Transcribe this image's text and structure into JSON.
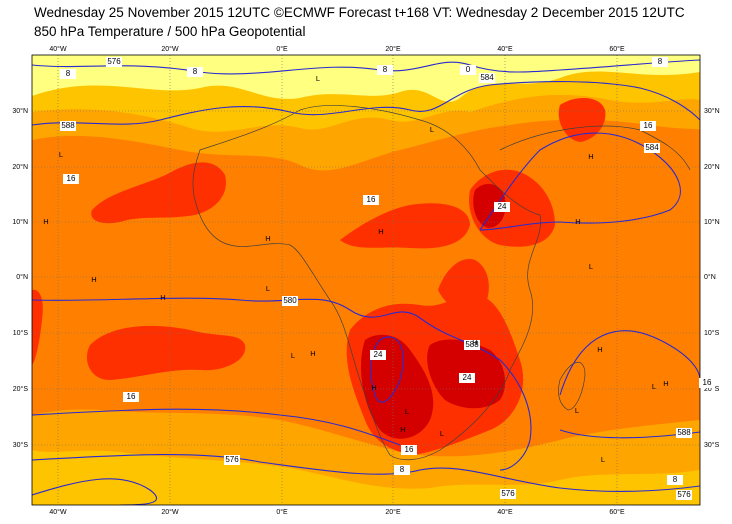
{
  "header": {
    "line1": "Wednesday 25 November 2015 12UTC ©ECMWF Forecast t+168 VT: Wednesday 2 December 2015 12UTC",
    "line2": "850 hPa Temperature / 500 hPa Geopotential"
  },
  "map": {
    "lon_labels": [
      "40°W",
      "20°W",
      "0°E",
      "20°E",
      "40°E",
      "60°E"
    ],
    "lat_labels": [
      "30°N",
      "20°N",
      "10°N",
      "0°N",
      "10°S",
      "20°S",
      "30°S"
    ],
    "contour_labels": [
      "8",
      "576",
      "8",
      "8",
      "0",
      "584",
      "588",
      "16",
      "16",
      "8",
      "16",
      "584",
      "24",
      "580",
      "24",
      "588",
      "24",
      "16",
      "16",
      "588",
      "576",
      "16",
      "8",
      "576",
      "8",
      "576"
    ],
    "pressure_centers": [
      "L",
      "H",
      "L",
      "L",
      "L",
      "L",
      "H",
      "H",
      "H",
      "H",
      "H",
      "L",
      "H",
      "H",
      "L",
      "H",
      "L",
      "L",
      "H",
      "H",
      "H",
      "L",
      "L",
      "H"
    ]
  }
}
